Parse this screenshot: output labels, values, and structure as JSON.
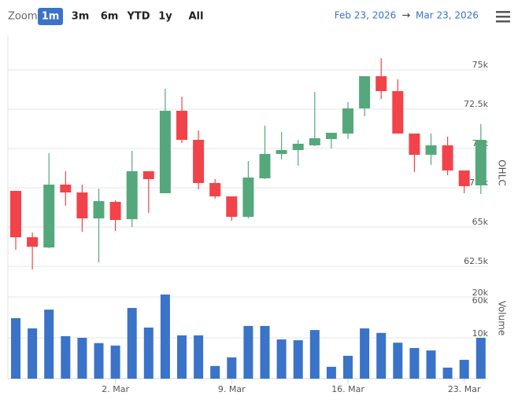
{
  "toolbar": {
    "zoom_label": "Zoom",
    "buttons": [
      "1m",
      "3m",
      "6m",
      "YTD",
      "1y",
      "All"
    ],
    "selected": 0,
    "from": "Feb 23, 2026",
    "arrow": "→",
    "to": "Mar 23, 2026"
  },
  "chart_data": {
    "type": "candlestick",
    "x": [
      "2026-02-24",
      "2026-02-25",
      "2026-02-26",
      "2026-02-27",
      "2026-02-28",
      "2026-03-01",
      "2026-03-02",
      "2026-03-03",
      "2026-03-04",
      "2026-03-05",
      "2026-03-06",
      "2026-03-07",
      "2026-03-08",
      "2026-03-09",
      "2026-03-10",
      "2026-03-11",
      "2026-03-12",
      "2026-03-13",
      "2026-03-14",
      "2026-03-15",
      "2026-03-16",
      "2026-03-17",
      "2026-03-18",
      "2026-03-19",
      "2026-03-20",
      "2026-03-21",
      "2026-03-22",
      "2026-03-23",
      "2026-03-24"
    ],
    "open": [
      67300,
      64350,
      63700,
      67700,
      67200,
      65550,
      66600,
      65500,
      68550,
      67150,
      72400,
      70550,
      67800,
      66950,
      65650,
      68100,
      69650,
      69900,
      70200,
      70600,
      70950,
      72550,
      74600,
      73650,
      70950,
      69600,
      70200,
      68600,
      67650
    ],
    "high": [
      67300,
      64650,
      69700,
      68550,
      67700,
      67450,
      66700,
      69850,
      68550,
      73800,
      73300,
      71150,
      68050,
      66950,
      69200,
      71450,
      71050,
      70550,
      73600,
      71000,
      72950,
      74600,
      75750,
      74400,
      70950,
      70950,
      70750,
      68600,
      71550
    ],
    "low": [
      63550,
      62300,
      63650,
      66350,
      64700,
      62750,
      64750,
      65000,
      65900,
      67150,
      70350,
      67400,
      66800,
      65400,
      65550,
      68050,
      69300,
      68900,
      70150,
      70000,
      70600,
      72050,
      73150,
      70950,
      68500,
      68950,
      68300,
      67150,
      67100
    ],
    "close": [
      64350,
      63750,
      67700,
      67200,
      65550,
      66650,
      65450,
      68550,
      68050,
      72400,
      70550,
      67800,
      66950,
      65650,
      68150,
      69650,
      69900,
      70300,
      70650,
      71000,
      72550,
      74600,
      73650,
      70950,
      69600,
      70200,
      68600,
      67600,
      70550
    ],
    "up_color": "#55a87b",
    "down_color": "#f2434a",
    "y_title": "OHLC",
    "ylim": [
      62200,
      77200
    ],
    "yticks": [
      {
        "value": 75000,
        "label": "75k"
      },
      {
        "value": 72500,
        "label": "72.5k"
      },
      {
        "value": 70000,
        "label": "70k"
      },
      {
        "value": 67500,
        "label": "67.5k"
      },
      {
        "value": 65000,
        "label": "65k"
      },
      {
        "value": 62500,
        "label": "62.5k"
      },
      {
        "value": 60000,
        "label": "60k"
      }
    ],
    "xticks": [
      {
        "value": "2026-03-02",
        "label": "2. Mar"
      },
      {
        "value": "2026-03-09",
        "label": "9. Mar"
      },
      {
        "value": "2026-03-16",
        "label": "16. Mar"
      },
      {
        "value": "2026-03-23",
        "label": "23. Mar"
      }
    ],
    "volume": {
      "name": "Volume",
      "color": "#3a73c8",
      "values": [
        14800,
        12300,
        16900,
        10400,
        10000,
        8700,
        8100,
        17300,
        12500,
        20600,
        10600,
        10600,
        3100,
        5200,
        12900,
        12900,
        9600,
        9400,
        11900,
        2900,
        5600,
        12300,
        11200,
        8800,
        7500,
        6900,
        2700,
        4600,
        10000
      ],
      "ylim": [
        0,
        20000
      ],
      "yticks": [
        {
          "value": 10000,
          "label": "10k"
        },
        {
          "value": 20000,
          "label": "20k"
        }
      ]
    },
    "grid": true
  }
}
